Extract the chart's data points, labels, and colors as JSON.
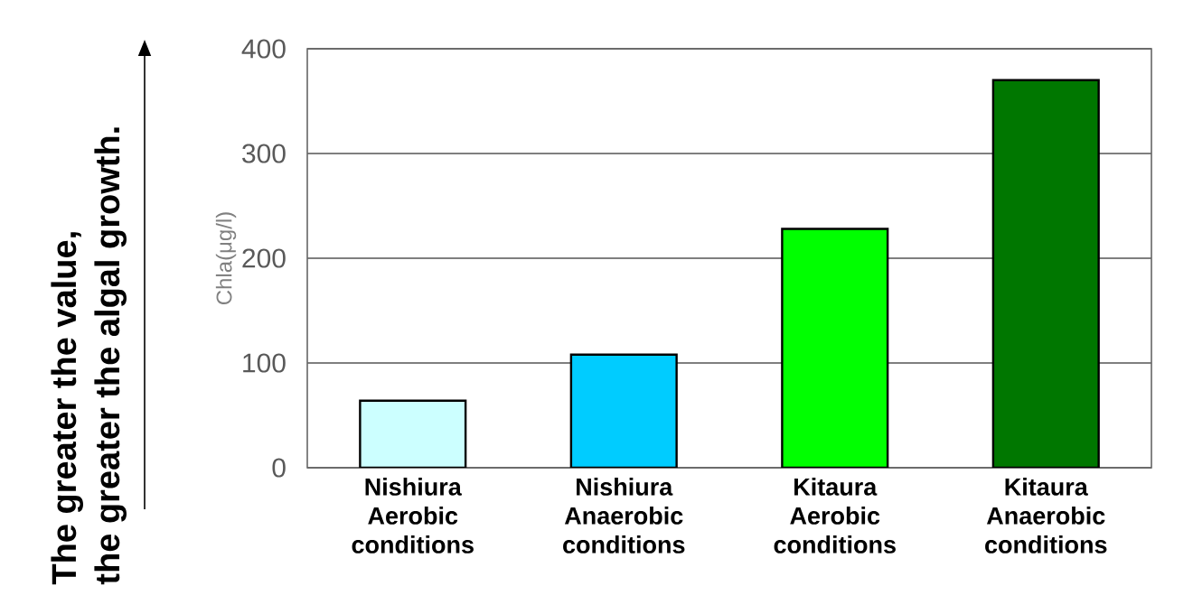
{
  "chart_data": {
    "type": "bar",
    "categories": [
      "Nishiura Aerobic conditions",
      "Nishiura Anaerobic conditions",
      "Kitaura Aerobic conditions",
      "Kitaura Anaerobic conditions"
    ],
    "values": [
      64,
      108,
      228,
      370
    ],
    "colors": [
      "#ccffff",
      "#00ccff",
      "#00ff00",
      "#007700"
    ],
    "ylabel": "Chla(μg/l)",
    "ylim": [
      0,
      400
    ],
    "yticks": [
      0,
      100,
      200,
      300,
      400
    ],
    "grid": "y",
    "annotations": [
      "The greater the value,",
      "the greater the algal growth."
    ]
  }
}
